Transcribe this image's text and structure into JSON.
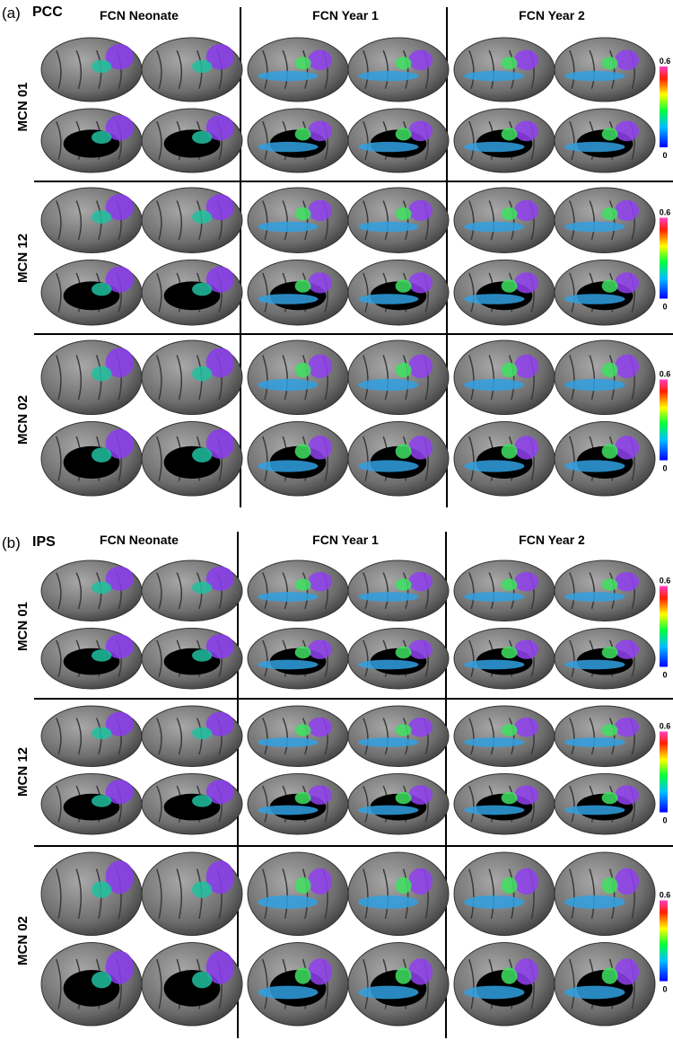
{
  "panels": [
    {
      "label": "(a)",
      "seed": "PCC",
      "columns": [
        "FCN Neonate",
        "FCN Year 1",
        "FCN Year 2"
      ],
      "rows": [
        "MCN 01",
        "MCN 12",
        "MCN 02"
      ],
      "colorbar": {
        "max": 0.6,
        "min": 0
      }
    },
    {
      "label": "(b)",
      "seed": "IPS",
      "columns": [
        "FCN Neonate",
        "FCN Year 1",
        "FCN Year 2"
      ],
      "rows": [
        "MCN 01",
        "MCN 12",
        "MCN 02"
      ],
      "colorbar": {
        "max": 0.6,
        "min": 0
      }
    }
  ]
}
